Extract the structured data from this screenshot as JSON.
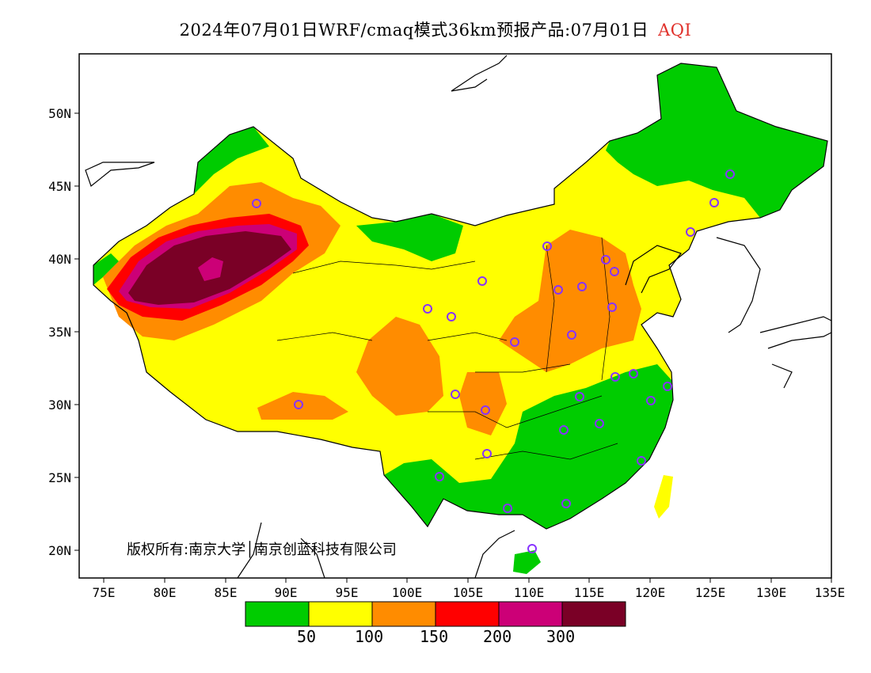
{
  "title": {
    "text": "2024年07月01日WRF/cmaq模式36km预报产品:07月01日",
    "variable": "AQI",
    "variable_color": "#e0302a"
  },
  "map": {
    "lon_range": [
      "73E",
      "135E"
    ],
    "lat_range": [
      "18N",
      "53N"
    ],
    "x_ticks": [
      "75E",
      "80E",
      "85E",
      "90E",
      "95E",
      "100E",
      "105E",
      "110E",
      "115E",
      "120E",
      "125E",
      "130E",
      "135E"
    ],
    "y_ticks": [
      "50N",
      "45N",
      "40N",
      "35N",
      "30N",
      "25N",
      "20N"
    ]
  },
  "copyright": "版权所有:南京大学│南京创蓝科技有限公司",
  "legend": {
    "colors": [
      "#00cc00",
      "#ffff00",
      "#ff8c00",
      "#ff0000",
      "#cc0077",
      "#7a0026"
    ],
    "labels": [
      "50",
      "100",
      "150",
      "200",
      "300"
    ]
  }
}
